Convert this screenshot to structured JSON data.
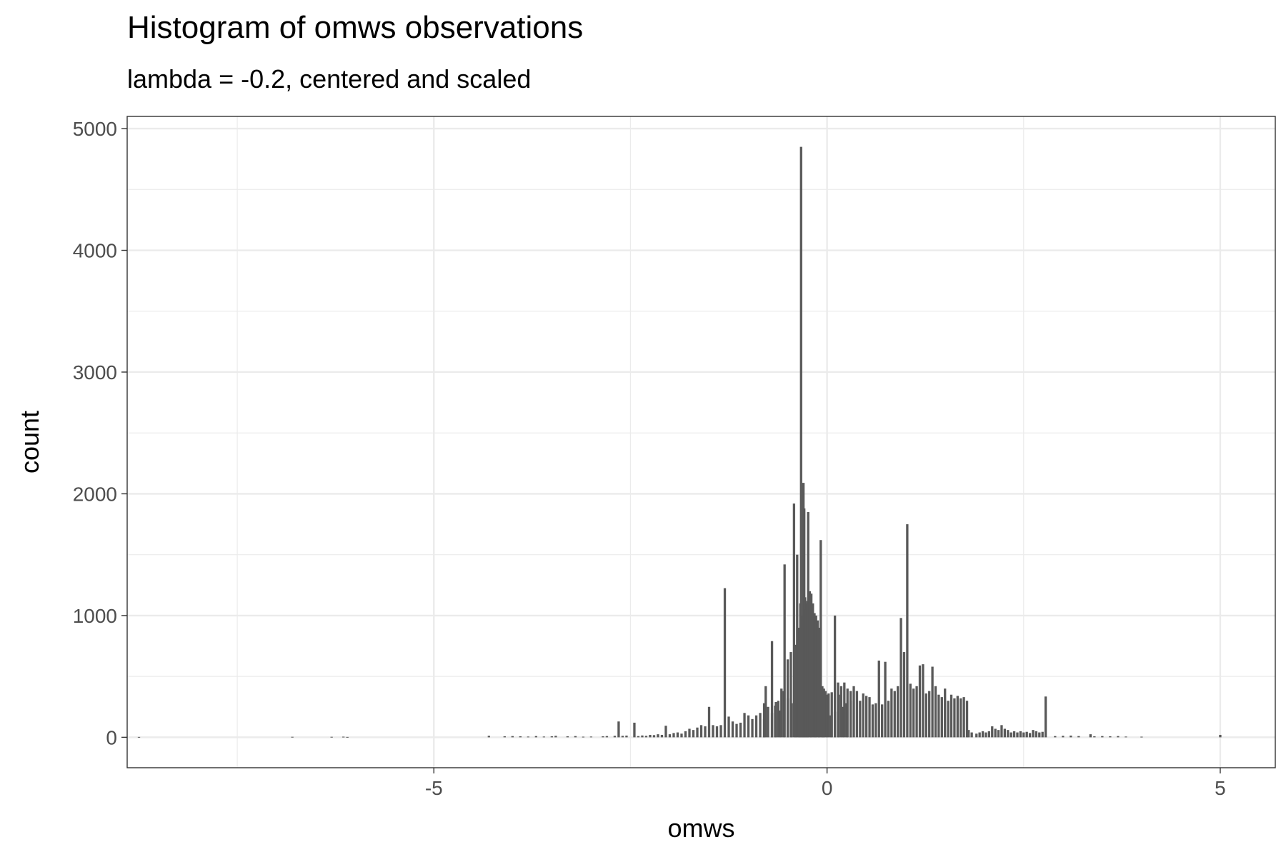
{
  "chart_data": {
    "type": "bar",
    "title": "Histogram of omws observations",
    "subtitle": "lambda = -0.2, centered and scaled",
    "xlabel": "omws",
    "ylabel": "count",
    "xlim": [
      -8.9,
      5.7
    ],
    "ylim": [
      -250,
      5100
    ],
    "x_ticks": [
      -5,
      0,
      5
    ],
    "x_tick_labels": [
      "-5",
      "0",
      "5"
    ],
    "y_ticks": [
      0,
      1000,
      2000,
      3000,
      4000,
      5000
    ],
    "y_tick_labels": [
      "0",
      "1000",
      "2000",
      "3000",
      "4000",
      "5000"
    ],
    "grid": true,
    "bar_color": "#595959",
    "bin_width": 0.03,
    "bins": [
      [
        -8.75,
        3
      ],
      [
        -6.8,
        4
      ],
      [
        -6.3,
        4
      ],
      [
        -6.15,
        5
      ],
      [
        -6.1,
        3
      ],
      [
        -4.3,
        12
      ],
      [
        -4.1,
        8
      ],
      [
        -4.0,
        10
      ],
      [
        -3.9,
        8
      ],
      [
        -3.8,
        6
      ],
      [
        -3.7,
        10
      ],
      [
        -3.6,
        6
      ],
      [
        -3.5,
        8
      ],
      [
        -3.45,
        12
      ],
      [
        -3.3,
        8
      ],
      [
        -3.2,
        10
      ],
      [
        -3.1,
        5
      ],
      [
        -3.0,
        6
      ],
      [
        -2.85,
        8
      ],
      [
        -2.8,
        10
      ],
      [
        -2.7,
        12
      ],
      [
        -2.65,
        130
      ],
      [
        -2.6,
        12
      ],
      [
        -2.55,
        14
      ],
      [
        -2.45,
        120
      ],
      [
        -2.4,
        10
      ],
      [
        -2.35,
        15
      ],
      [
        -2.3,
        12
      ],
      [
        -2.25,
        20
      ],
      [
        -2.2,
        18
      ],
      [
        -2.15,
        25
      ],
      [
        -2.1,
        20
      ],
      [
        -2.05,
        95
      ],
      [
        -2.0,
        25
      ],
      [
        -1.95,
        35
      ],
      [
        -1.9,
        40
      ],
      [
        -1.85,
        30
      ],
      [
        -1.8,
        50
      ],
      [
        -1.75,
        70
      ],
      [
        -1.7,
        60
      ],
      [
        -1.65,
        80
      ],
      [
        -1.6,
        100
      ],
      [
        -1.55,
        90
      ],
      [
        -1.5,
        250
      ],
      [
        -1.45,
        100
      ],
      [
        -1.4,
        90
      ],
      [
        -1.35,
        100
      ],
      [
        -1.3,
        1225
      ],
      [
        -1.25,
        170
      ],
      [
        -1.2,
        130
      ],
      [
        -1.15,
        110
      ],
      [
        -1.1,
        120
      ],
      [
        -1.05,
        200
      ],
      [
        -1.0,
        180
      ],
      [
        -0.95,
        150
      ],
      [
        -0.9,
        180
      ],
      [
        -0.85,
        200
      ],
      [
        -0.8,
        150
      ],
      [
        -0.75,
        250
      ],
      [
        -0.7,
        200
      ],
      [
        -0.65,
        290
      ],
      [
        -0.6,
        220
      ],
      [
        -0.55,
        380
      ],
      [
        -0.5,
        320
      ],
      [
        -0.45,
        280
      ],
      [
        -0.4,
        300
      ],
      [
        -0.35,
        200
      ],
      [
        -0.3,
        270
      ],
      [
        -0.25,
        180
      ],
      [
        -0.2,
        160
      ],
      [
        -0.15,
        170
      ],
      [
        -0.1,
        190
      ],
      [
        -0.05,
        220
      ],
      [
        0.0,
        170
      ],
      [
        0.05,
        180
      ],
      [
        0.1,
        210
      ],
      [
        0.15,
        350
      ],
      [
        -0.05,
        200
      ],
      [
        0.2,
        250
      ],
      [
        0.25,
        280
      ],
      [
        0.3,
        300
      ],
      [
        -0.8,
        280
      ],
      [
        -0.78,
        420
      ],
      [
        -0.7,
        790
      ],
      [
        -0.66,
        260
      ],
      [
        -0.62,
        300
      ],
      [
        -0.58,
        400
      ],
      [
        -0.54,
        1420
      ],
      [
        -0.5,
        640
      ],
      [
        -0.46,
        700
      ],
      [
        -0.42,
        1920
      ],
      [
        -0.4,
        760
      ],
      [
        -0.38,
        1500
      ],
      [
        -0.36,
        900
      ],
      [
        -0.34,
        1100
      ],
      [
        -0.32,
        1000
      ],
      [
        -0.3,
        2090
      ],
      [
        -0.28,
        1150
      ],
      [
        -0.26,
        1100
      ],
      [
        -0.24,
        1850
      ],
      [
        -0.22,
        1200
      ],
      [
        -0.2,
        1180
      ],
      [
        -0.18,
        1100
      ],
      [
        -0.16,
        1020
      ],
      [
        -0.14,
        1000
      ],
      [
        -0.12,
        960
      ],
      [
        -0.1,
        900
      ],
      [
        -0.08,
        1620
      ],
      [
        -0.06,
        420
      ],
      [
        -0.04,
        400
      ],
      [
        -0.02,
        380
      ],
      [
        0.0,
        350
      ],
      [
        -0.33,
        4850
      ],
      [
        -0.29,
        1880
      ],
      [
        -0.27,
        1050
      ],
      [
        -0.25,
        1120
      ],
      [
        0.02,
        360
      ],
      [
        0.06,
        370
      ],
      [
        0.1,
        1000
      ],
      [
        0.14,
        450
      ],
      [
        0.18,
        420
      ],
      [
        0.22,
        450
      ],
      [
        0.26,
        400
      ],
      [
        0.3,
        380
      ],
      [
        0.34,
        420
      ],
      [
        0.38,
        380
      ],
      [
        0.42,
        300
      ],
      [
        0.46,
        360
      ],
      [
        0.5,
        340
      ],
      [
        0.54,
        330
      ],
      [
        0.58,
        270
      ],
      [
        0.62,
        280
      ],
      [
        0.66,
        630
      ],
      [
        0.7,
        270
      ],
      [
        0.74,
        620
      ],
      [
        0.78,
        300
      ],
      [
        0.82,
        400
      ],
      [
        0.86,
        380
      ],
      [
        0.9,
        420
      ],
      [
        0.94,
        980
      ],
      [
        0.98,
        700
      ],
      [
        1.02,
        1750
      ],
      [
        1.06,
        440
      ],
      [
        1.1,
        400
      ],
      [
        1.14,
        420
      ],
      [
        1.18,
        590
      ],
      [
        1.22,
        600
      ],
      [
        1.26,
        360
      ],
      [
        1.3,
        380
      ],
      [
        1.34,
        580
      ],
      [
        1.38,
        420
      ],
      [
        1.42,
        350
      ],
      [
        1.46,
        330
      ],
      [
        1.5,
        400
      ],
      [
        1.54,
        300
      ],
      [
        1.58,
        350
      ],
      [
        1.62,
        320
      ],
      [
        1.66,
        340
      ],
      [
        1.7,
        320
      ],
      [
        1.74,
        330
      ],
      [
        1.78,
        300
      ],
      [
        1.8,
        60
      ],
      [
        1.84,
        40
      ],
      [
        1.9,
        30
      ],
      [
        1.94,
        40
      ],
      [
        1.98,
        50
      ],
      [
        2.02,
        40
      ],
      [
        2.06,
        50
      ],
      [
        2.1,
        90
      ],
      [
        2.14,
        70
      ],
      [
        2.18,
        60
      ],
      [
        2.22,
        100
      ],
      [
        2.26,
        70
      ],
      [
        2.3,
        60
      ],
      [
        2.34,
        40
      ],
      [
        2.38,
        50
      ],
      [
        2.42,
        40
      ],
      [
        2.46,
        50
      ],
      [
        2.5,
        40
      ],
      [
        2.54,
        45
      ],
      [
        2.58,
        35
      ],
      [
        2.62,
        60
      ],
      [
        2.66,
        50
      ],
      [
        2.7,
        40
      ],
      [
        2.74,
        45
      ],
      [
        2.78,
        335
      ],
      [
        2.9,
        10
      ],
      [
        3.0,
        12
      ],
      [
        3.1,
        14
      ],
      [
        3.2,
        10
      ],
      [
        3.35,
        25
      ],
      [
        3.4,
        8
      ],
      [
        3.5,
        10
      ],
      [
        3.6,
        8
      ],
      [
        3.7,
        10
      ],
      [
        3.8,
        6
      ],
      [
        4.0,
        5
      ],
      [
        5.0,
        20
      ]
    ]
  }
}
